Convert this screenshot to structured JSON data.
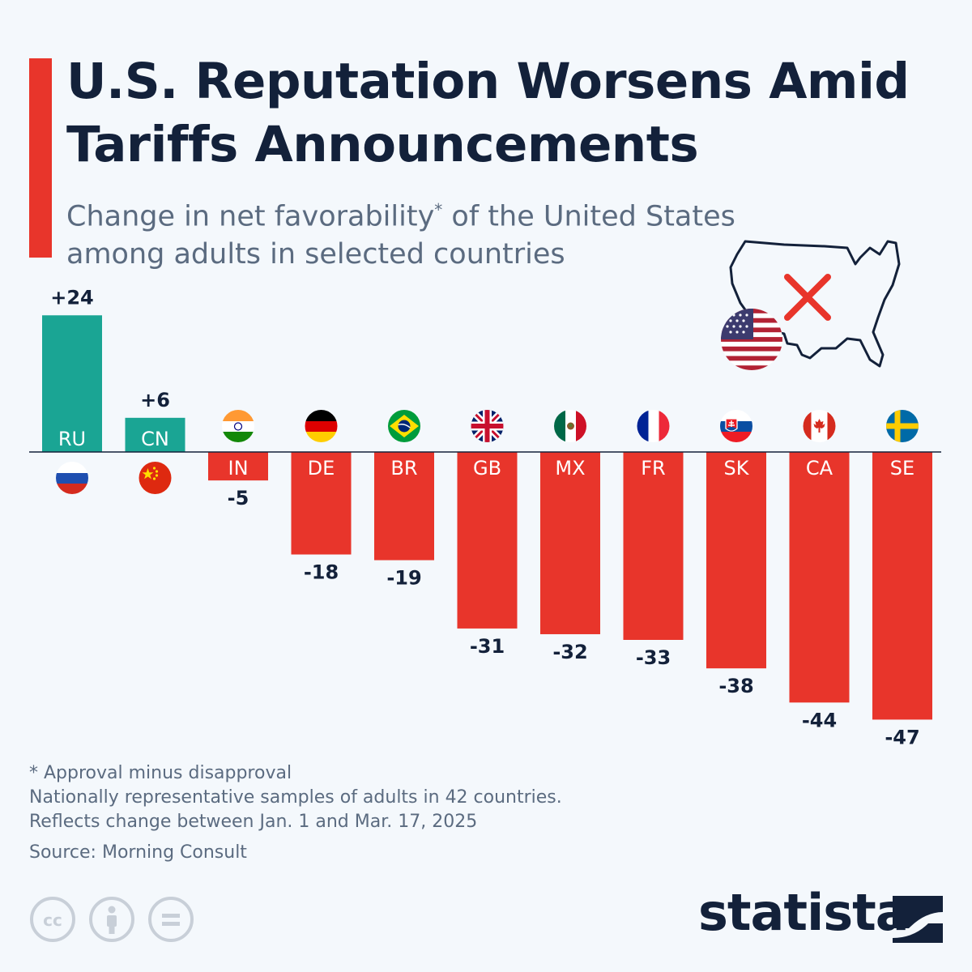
{
  "header": {
    "title": "U.S. Reputation Worsens Amid Tariffs Announcements",
    "subtitle": "Change in net favorability* of the United States among adults in selected countries",
    "subtitle_main": "Change in net favorability",
    "subtitle_star": "*",
    "subtitle_rest": " of the United States among adults in selected countries"
  },
  "colors": {
    "accent": "#e8352b",
    "positive": "#1aa594",
    "negative": "#e8352b",
    "title": "#13213a",
    "subtitle": "#5b6b80",
    "axis": "#13213a"
  },
  "chart_data": {
    "type": "bar",
    "categories": [
      "RU",
      "CN",
      "IN",
      "DE",
      "BR",
      "GB",
      "MX",
      "FR",
      "SK",
      "CA",
      "SE"
    ],
    "values": [
      24,
      6,
      -5,
      -18,
      -19,
      -31,
      -32,
      -33,
      -38,
      -44,
      -47
    ],
    "value_labels": [
      "+24",
      "+6",
      "-5",
      "-18",
      "-19",
      "-31",
      "-32",
      "-33",
      "-38",
      "-44",
      "-47"
    ],
    "flag_icons": [
      "russia-flag-icon",
      "china-flag-icon",
      "india-flag-icon",
      "germany-flag-icon",
      "brazil-flag-icon",
      "uk-flag-icon",
      "mexico-flag-icon",
      "france-flag-icon",
      "slovakia-flag-icon",
      "canada-flag-icon",
      "sweden-flag-icon"
    ],
    "title": "Change in net favorability* of the United States among adults in selected countries",
    "xlabel": "",
    "ylabel": "",
    "ylim": [
      -47,
      24
    ],
    "grid": false
  },
  "illustration": {
    "icons": [
      "us-map-icon",
      "us-flag-icon",
      "red-x-icon"
    ]
  },
  "footer": {
    "note_1": "* Approval minus disapproval",
    "note_2": "Nationally representative samples of adults in 42 countries.",
    "note_3": "Reflects change between Jan. 1 and Mar. 17, 2025",
    "source": "Source: Morning Consult",
    "license_icons": [
      "cc-icon",
      "attribution-icon",
      "no-derivatives-icon"
    ],
    "brand": "statista"
  }
}
